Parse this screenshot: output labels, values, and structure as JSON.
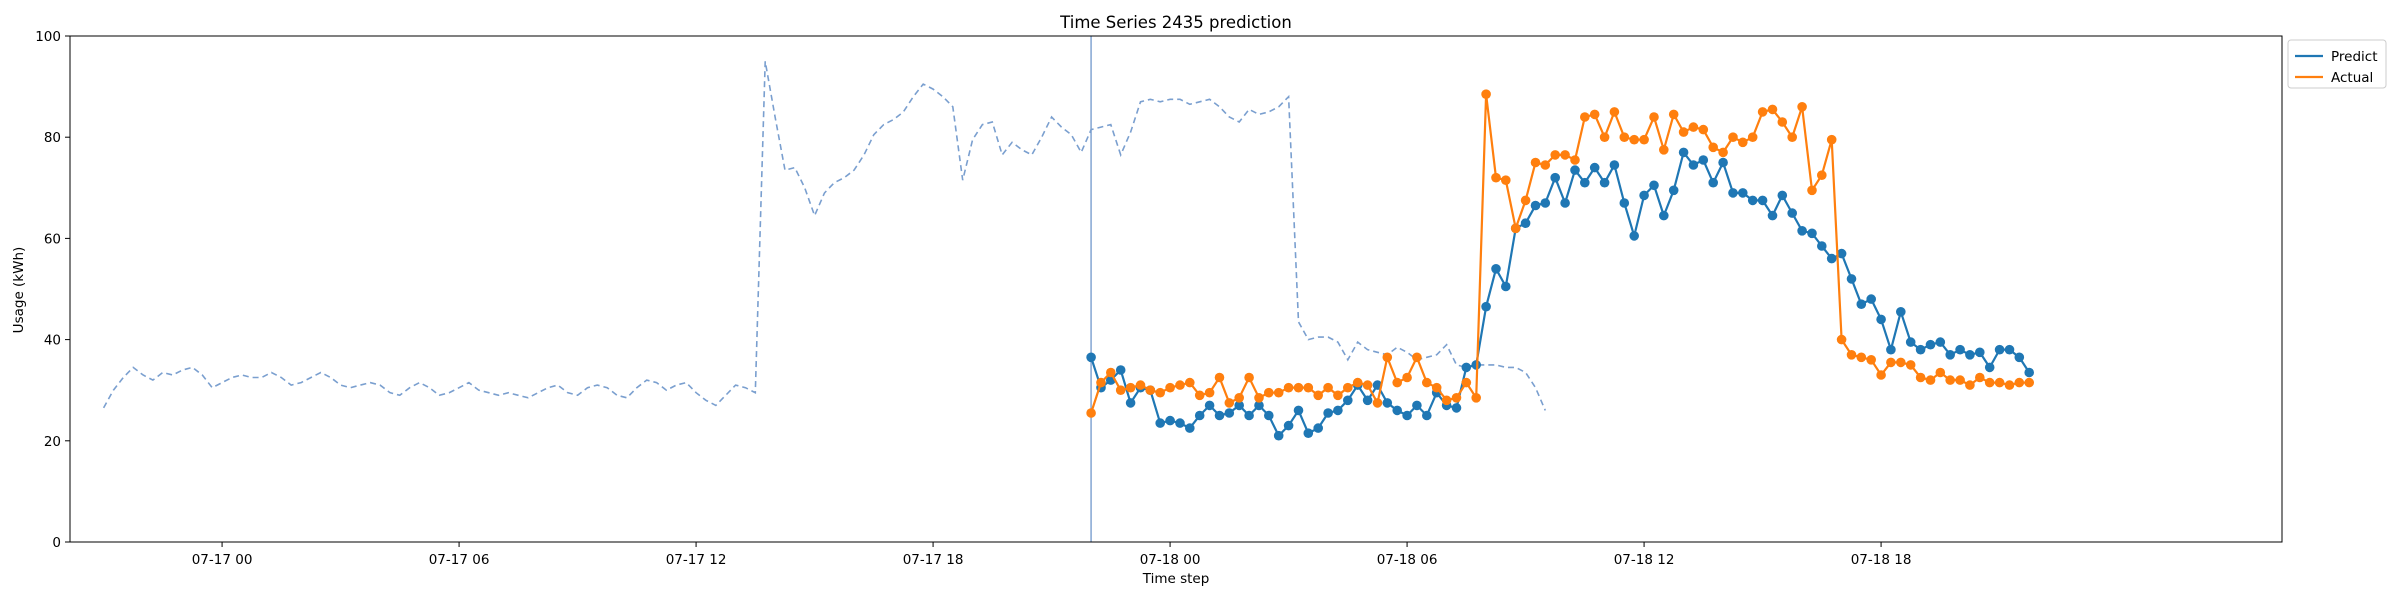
{
  "chart_data": {
    "type": "line",
    "title": "Time Series 2435 prediction",
    "xlabel": "Time step",
    "ylabel": "Usage (kWh)",
    "ylim": [
      0,
      100
    ],
    "xlim": [
      "2024-07-16 20:09",
      "2024-07-19 04:09"
    ],
    "yticks": [
      0,
      20,
      40,
      60,
      80,
      100
    ],
    "xticks": [
      {
        "t": "2024-07-17 00:00",
        "label": "07-17 00"
      },
      {
        "t": "2024-07-17 06:00",
        "label": "07-17 06"
      },
      {
        "t": "2024-07-17 12:00",
        "label": "07-17 12"
      },
      {
        "t": "2024-07-17 18:00",
        "label": "07-17 18"
      },
      {
        "t": "2024-07-18 00:00",
        "label": "07-18 00"
      },
      {
        "t": "2024-07-18 06:00",
        "label": "07-18 06"
      },
      {
        "t": "2024-07-18 12:00",
        "label": "07-18 12"
      },
      {
        "t": "2024-07-18 18:00",
        "label": "07-18 18"
      }
    ],
    "grid": false,
    "legend_position": "outside top-right",
    "history_start": "2024-07-16 21:00",
    "forecast_start": "2024-07-17 22:00",
    "step_minutes": 15,
    "history": {
      "style": "dashed",
      "color": "#7a9fcf",
      "values": [
        26.5,
        30.0,
        32.5,
        34.5,
        33.0,
        32.0,
        33.5,
        33.0,
        34.0,
        34.5,
        33.0,
        30.5,
        31.5,
        32.5,
        33.0,
        32.5,
        32.5,
        33.5,
        32.5,
        31.0,
        31.5,
        32.5,
        33.5,
        32.5,
        31.0,
        30.5,
        31.0,
        31.5,
        31.0,
        29.5,
        29.0,
        30.5,
        31.5,
        30.5,
        29.0,
        29.5,
        30.5,
        31.5,
        30.0,
        29.5,
        29.0,
        29.5,
        29.0,
        28.5,
        29.5,
        30.5,
        31.0,
        29.5,
        29.0,
        30.5,
        31.0,
        30.5,
        29.0,
        28.5,
        30.5,
        32.0,
        31.5,
        30.0,
        31.0,
        31.5,
        29.5,
        28.0,
        27.0,
        29.0,
        31.0,
        30.5,
        29.5,
        95.0,
        84.0,
        73.5,
        74.0,
        70.0,
        64.5,
        69.0,
        71.0,
        72.0,
        73.5,
        76.5,
        80.5,
        82.5,
        83.5,
        85.0,
        88.0,
        90.5,
        89.5,
        88.0,
        86.0,
        71.5,
        79.5,
        82.5,
        83.0,
        76.5,
        79.0,
        77.5,
        76.5,
        80.0,
        84.0,
        82.0,
        80.5,
        77.0,
        81.5,
        82.0,
        82.5,
        76.5,
        81.0,
        87.0,
        87.5,
        87.0,
        87.5,
        87.5,
        86.5,
        87.0,
        87.5,
        86.0,
        84.0,
        83.0,
        85.5,
        84.5,
        85.0,
        86.0,
        88.0,
        43.5,
        40.0,
        40.5,
        40.5,
        39.5,
        36.0,
        39.5,
        38.0,
        37.5,
        37.0,
        38.5,
        37.5,
        36.0,
        36.5,
        37.0,
        39.0,
        35.0,
        34.5,
        35.0,
        35.0,
        35.0,
        34.5,
        34.5,
        33.5,
        30.5,
        26.0
      ]
    },
    "series": [
      {
        "name": "Predict",
        "color": "#1f77b4",
        "values": [
          36.5,
          30.5,
          32.0,
          34.0,
          27.5,
          30.5,
          30.0,
          23.5,
          24.0,
          23.5,
          22.5,
          25.0,
          27.0,
          25.0,
          25.5,
          27.0,
          25.0,
          27.0,
          25.0,
          21.0,
          23.0,
          26.0,
          21.5,
          22.5,
          25.5,
          26.0,
          28.0,
          31.0,
          28.0,
          31.0,
          27.5,
          26.0,
          25.0,
          27.0,
          25.0,
          29.5,
          27.0,
          26.5,
          34.5,
          35.0,
          46.5,
          54.0,
          50.5,
          62.0,
          63.0,
          66.5,
          67.0,
          72.0,
          67.0,
          73.5,
          71.0,
          74.0,
          71.0,
          74.5,
          67.0,
          60.5,
          68.5,
          70.5,
          64.5,
          69.5,
          77.0,
          74.5,
          75.5,
          71.0,
          75.0,
          69.0,
          69.0,
          67.5,
          67.5,
          64.5,
          68.5,
          65.0,
          61.5,
          61.0,
          58.5,
          56.0,
          57.0,
          52.0,
          47.0,
          48.0,
          44.0,
          38.0,
          45.5,
          39.5,
          38.0,
          39.0,
          39.5,
          37.0,
          38.0,
          37.0,
          37.5,
          34.5,
          38.0,
          38.0,
          36.5,
          33.5
        ]
      },
      {
        "name": "Actual",
        "color": "#ff7f0e",
        "values": [
          25.5,
          31.5,
          33.5,
          30.0,
          30.5,
          31.0,
          30.0,
          29.5,
          30.5,
          31.0,
          31.5,
          29.0,
          29.5,
          32.5,
          27.5,
          28.5,
          32.5,
          28.5,
          29.5,
          29.5,
          30.5,
          30.5,
          30.5,
          29.0,
          30.5,
          29.0,
          30.5,
          31.5,
          31.0,
          27.5,
          36.5,
          31.5,
          32.5,
          36.5,
          31.5,
          30.5,
          28.0,
          28.5,
          31.5,
          28.5,
          88.5,
          72.0,
          71.5,
          62.0,
          67.5,
          75.0,
          74.5,
          76.5,
          76.5,
          75.5,
          84.0,
          84.5,
          80.0,
          85.0,
          80.0,
          79.5,
          79.5,
          84.0,
          77.5,
          84.5,
          81.0,
          82.0,
          81.5,
          78.0,
          77.0,
          80.0,
          79.0,
          80.0,
          85.0,
          85.5,
          83.0,
          80.0,
          86.0,
          69.5,
          72.5,
          79.5,
          40.0,
          37.0,
          36.5,
          36.0,
          33.0,
          35.5,
          35.5,
          35.0,
          32.5,
          32.0,
          33.5,
          32.0,
          32.0,
          31.0,
          32.5,
          31.5,
          31.5,
          31.0,
          31.5,
          31.5
        ]
      }
    ]
  }
}
